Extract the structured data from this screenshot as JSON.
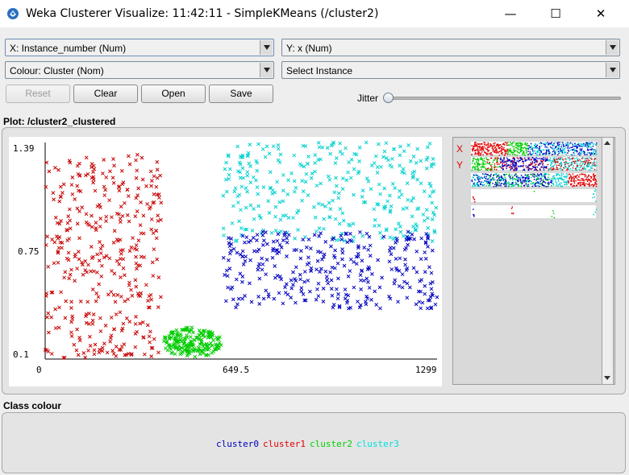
{
  "window": {
    "title": "Weka Clusterer Visualize: 11:42:11 - SimpleKMeans (/cluster2)",
    "minimize": "—",
    "maximize": "☐",
    "close": "✕"
  },
  "controls": {
    "x_axis": "X: Instance_number (Num)",
    "y_axis": "Y: x (Num)",
    "colour": "Colour: Cluster (Nom)",
    "select": "Select Instance",
    "reset": "Reset",
    "clear": "Clear",
    "open": "Open",
    "save": "Save",
    "jitter_label": "Jitter",
    "jitter_level": 0
  },
  "plot": {
    "title": "Plot: /cluster2_clustered",
    "x_ticks": [
      "0",
      "649.5",
      "1299"
    ],
    "y_ticks": [
      "1.39",
      "0.75",
      "0.1"
    ]
  },
  "attribute_panel": {
    "x_marker": "X",
    "y_marker": "Y"
  },
  "class_colour": {
    "title": "Class colour",
    "legend": [
      {
        "label": "cluster0",
        "color": "#0000c0"
      },
      {
        "label": "cluster1",
        "color": "#e00000"
      },
      {
        "label": "cluster2",
        "color": "#00d000"
      },
      {
        "label": "cluster3",
        "color": "#00e0e0"
      }
    ]
  },
  "chart_data": {
    "type": "scatter",
    "xlim": [
      0,
      1299
    ],
    "ylim": [
      0.1,
      1.39
    ],
    "x_ticks": [
      0,
      649.5,
      1299
    ],
    "y_ticks": [
      0.1,
      0.75,
      1.39
    ],
    "marker": "x",
    "grid": false,
    "series": [
      {
        "name": "cluster1",
        "color": "#c80000",
        "x_range": [
          0,
          385
        ],
        "y_range": [
          0.1,
          1.32
        ]
      },
      {
        "name": "cluster2",
        "color": "#00cc00",
        "x_range": [
          385,
          590
        ],
        "y_range": [
          0.1,
          0.3
        ]
      },
      {
        "name": "cluster3",
        "color": "#00d0d0",
        "x_range": [
          590,
          1299
        ],
        "y_range": [
          0.8,
          1.39
        ]
      },
      {
        "name": "cluster0",
        "color": "#0000c0",
        "x_range": [
          590,
          1299
        ],
        "y_range": [
          0.4,
          0.86
        ]
      }
    ]
  }
}
